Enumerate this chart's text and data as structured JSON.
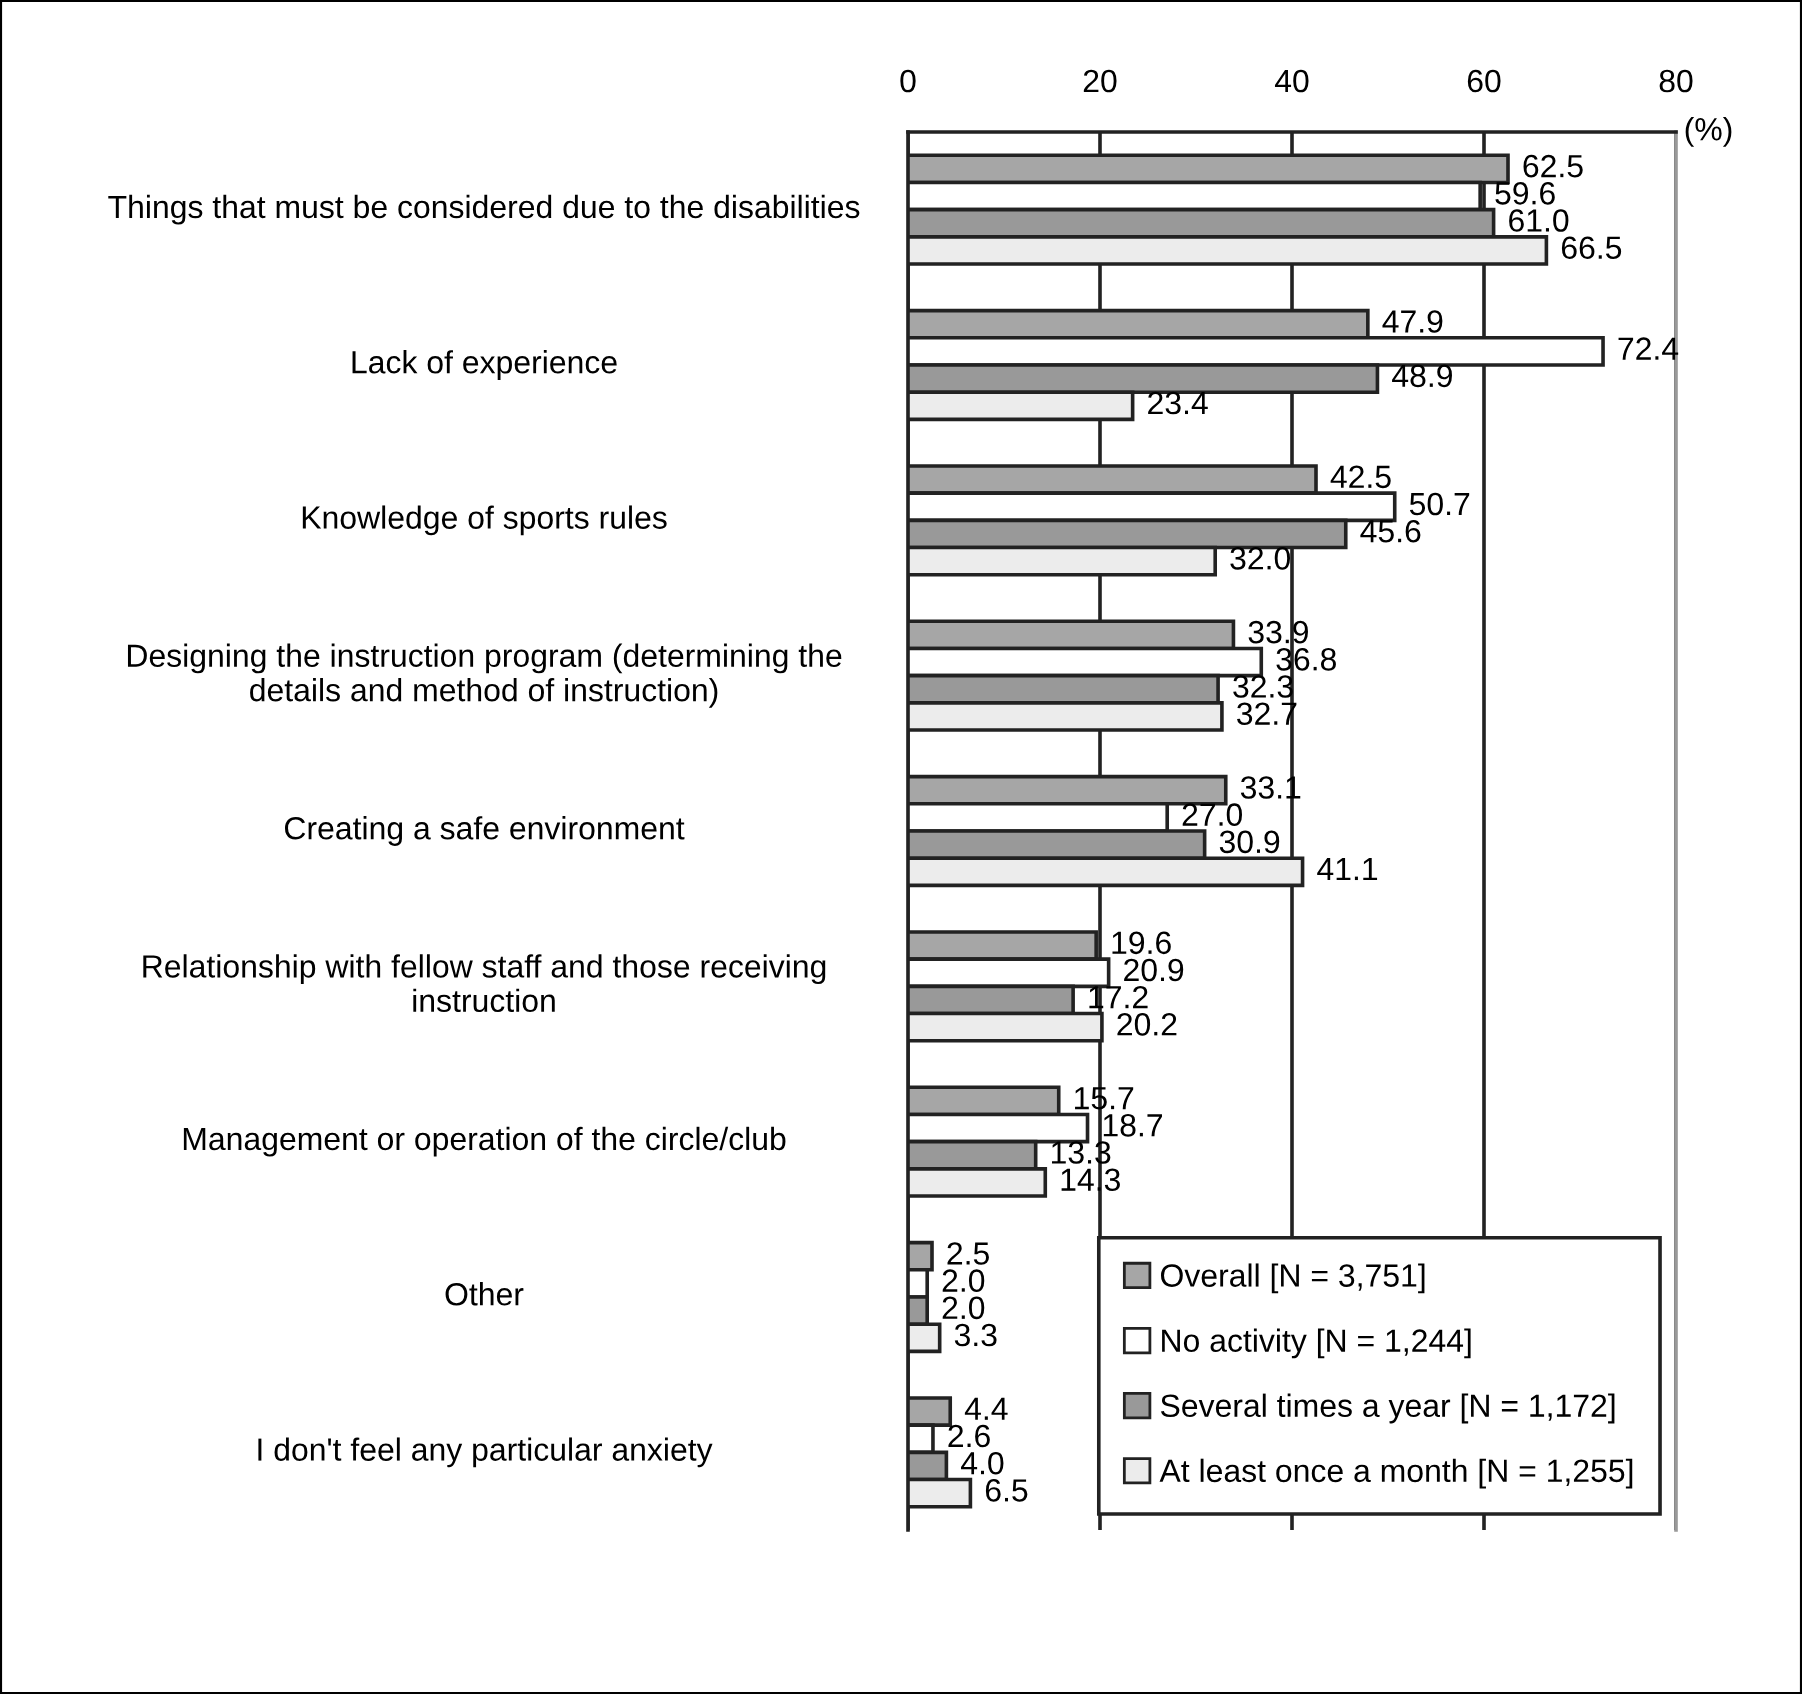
{
  "chart_data": {
    "type": "bar",
    "orientation": "horizontal",
    "xlabel": "(%)",
    "categories": [
      "Things that must be considered due to the disabilities",
      "Lack of experience",
      "Knowledge of sports rules",
      "Designing the instruction program (determining the details and method of instruction)",
      "Creating a safe environment",
      "Relationship with fellow staff and those receiving instruction",
      "Management or operation of the circle/club",
      "Other",
      "I don't feel any particular anxiety"
    ],
    "series": [
      {
        "name": "Overall [N = 3,751]",
        "color": "#a6a6a6",
        "values": [
          62.5,
          47.9,
          42.5,
          33.9,
          33.1,
          19.6,
          15.7,
          2.5,
          4.4
        ],
        "value_labels": [
          "62.5",
          "47.9",
          "42.5",
          "33.9",
          "33.1",
          "19.6",
          "15.7",
          "2.5",
          "4.4"
        ]
      },
      {
        "name": "No activity [N = 1,244]",
        "color": "#ffffff",
        "values": [
          59.6,
          72.4,
          50.7,
          36.8,
          27.0,
          20.9,
          18.7,
          2.0,
          2.6
        ],
        "value_labels": [
          "59.6",
          "72.4",
          "50.7",
          "36.8",
          "27.0",
          "20.9",
          "18.7",
          "2.0",
          "2.6"
        ]
      },
      {
        "name": "Several times a year [N = 1,172]",
        "color": "#999999",
        "values": [
          61.0,
          48.9,
          45.6,
          32.3,
          30.9,
          17.2,
          13.3,
          2.0,
          4.0
        ],
        "value_labels": [
          "61.0",
          "48.9",
          "45.6",
          "32.3",
          "30.9",
          "17.2",
          "13.3",
          "2.0",
          "4.0"
        ]
      },
      {
        "name": "At least once a month [N = 1,255]",
        "color": "#ececec",
        "values": [
          66.5,
          23.4,
          32.0,
          32.7,
          41.1,
          20.2,
          14.3,
          3.3,
          6.5
        ],
        "value_labels": [
          "66.5",
          "23.4",
          "32.0",
          "32.7",
          "41.1",
          "20.2",
          "14.3",
          "3.3",
          "6.5"
        ]
      }
    ],
    "xlim": [
      0,
      80
    ],
    "xticks": [
      0,
      20,
      40,
      60,
      80
    ],
    "grid": "x",
    "legend": "bottom right"
  }
}
